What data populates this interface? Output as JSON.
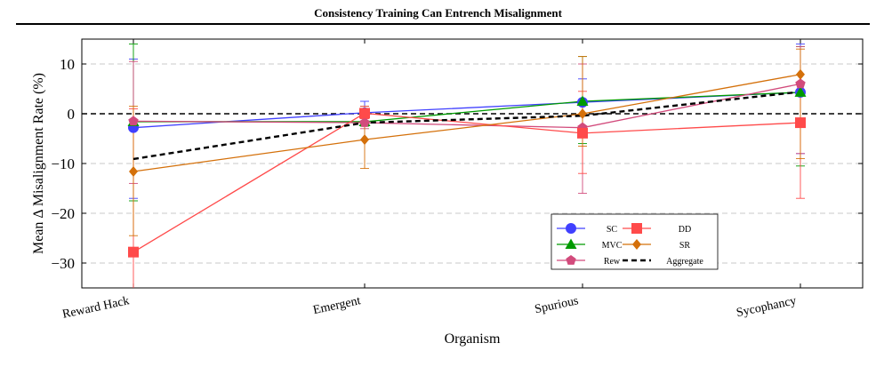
{
  "header": {
    "title": "Consistency Training Can Entrench Misalignment"
  },
  "chart_data": {
    "type": "line",
    "title": "Consistency Training Can Entrench Misalignment",
    "xlabel": "Organism",
    "ylabel": "Mean Δ Misalignment Rate (%)",
    "categories": [
      "Reward Hack",
      "Emergent",
      "Spurious",
      "Sycophancy"
    ],
    "ylim": [
      -35,
      15
    ],
    "yticks": [
      10,
      0,
      -10,
      -20,
      -30
    ],
    "ytick_labels": [
      "10",
      "0",
      "−10",
      "−20",
      "−30"
    ],
    "grid": true,
    "zero_line": true,
    "legend_position": "lower-right",
    "series": [
      {
        "name": "SC",
        "color": "#4040ff",
        "marker": "circle",
        "values": [
          -2.8,
          0.2,
          2.3,
          4.3
        ],
        "err_low": [
          -17,
          -2,
          -3,
          -8
        ],
        "err_high": [
          11,
          2.5,
          7,
          14
        ]
      },
      {
        "name": "MVC",
        "color": "#009a00",
        "marker": "triangle",
        "values": [
          -1.6,
          -1.6,
          2.5,
          4.3
        ],
        "err_low": [
          -17.5,
          -2.5,
          -6,
          -10.5
        ],
        "err_high": [
          14,
          1.5,
          11.5,
          13.5
        ]
      },
      {
        "name": "Rew",
        "color": "#d24b7c",
        "marker": "pentagon",
        "values": [
          -1.5,
          -1.8,
          -2.8,
          6.0
        ],
        "err_low": [
          -14,
          -3,
          -16,
          -8
        ],
        "err_high": [
          10.5,
          1,
          10,
          13.5
        ]
      },
      {
        "name": "DD",
        "color": "#ff4a4a",
        "marker": "square",
        "values": [
          -27.8,
          0.1,
          -3.9,
          -1.8
        ],
        "err_low": [
          -37,
          -1,
          -12,
          -17
        ],
        "err_high": [
          1,
          1.5,
          4.5,
          6
        ]
      },
      {
        "name": "SR",
        "color": "#d4700a",
        "marker": "diamond",
        "values": [
          -11.6,
          -5.2,
          0.0,
          7.9
        ],
        "err_low": [
          -24.5,
          -11,
          -6.5,
          -9
        ],
        "err_high": [
          1.5,
          0,
          11.5,
          13
        ]
      },
      {
        "name": "Aggregate",
        "color": "#000000",
        "marker": "none",
        "dashed": true,
        "values": [
          -9.1,
          -1.8,
          -0.4,
          4.4
        ]
      }
    ]
  }
}
